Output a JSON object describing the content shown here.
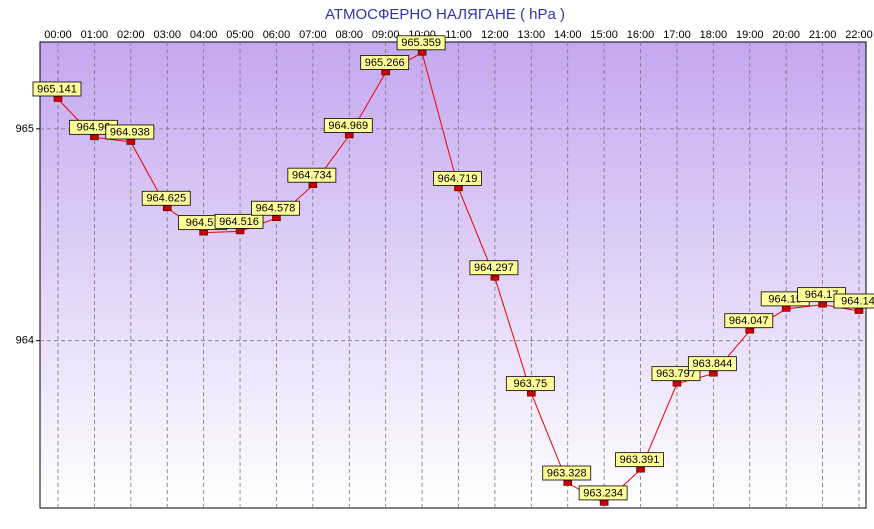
{
  "chart_data": {
    "type": "line",
    "title": "АТМОСФЕРНО НАЛЯГАНЕ  ( hPa )",
    "categories": [
      "00:00",
      "01:00",
      "02:00",
      "03:00",
      "04:00",
      "05:00",
      "06:00",
      "07:00",
      "08:00",
      "09:00",
      "10:00",
      "11:00",
      "12:00",
      "13:00",
      "14:00",
      "15:00",
      "16:00",
      "17:00",
      "18:00",
      "19:00",
      "20:00",
      "21:00",
      "22:00"
    ],
    "values": [
      965.141,
      964.96,
      964.938,
      964.625,
      964.51,
      964.516,
      964.578,
      964.734,
      964.969,
      965.266,
      965.359,
      964.719,
      964.297,
      963.75,
      963.328,
      963.234,
      963.391,
      963.797,
      963.844,
      964.047,
      964.15,
      964.17,
      964.14
    ],
    "color": "#ee0000",
    "ylim": [
      963.21,
      965.41
    ],
    "yticks": [
      964,
      965
    ],
    "grid": true
  }
}
